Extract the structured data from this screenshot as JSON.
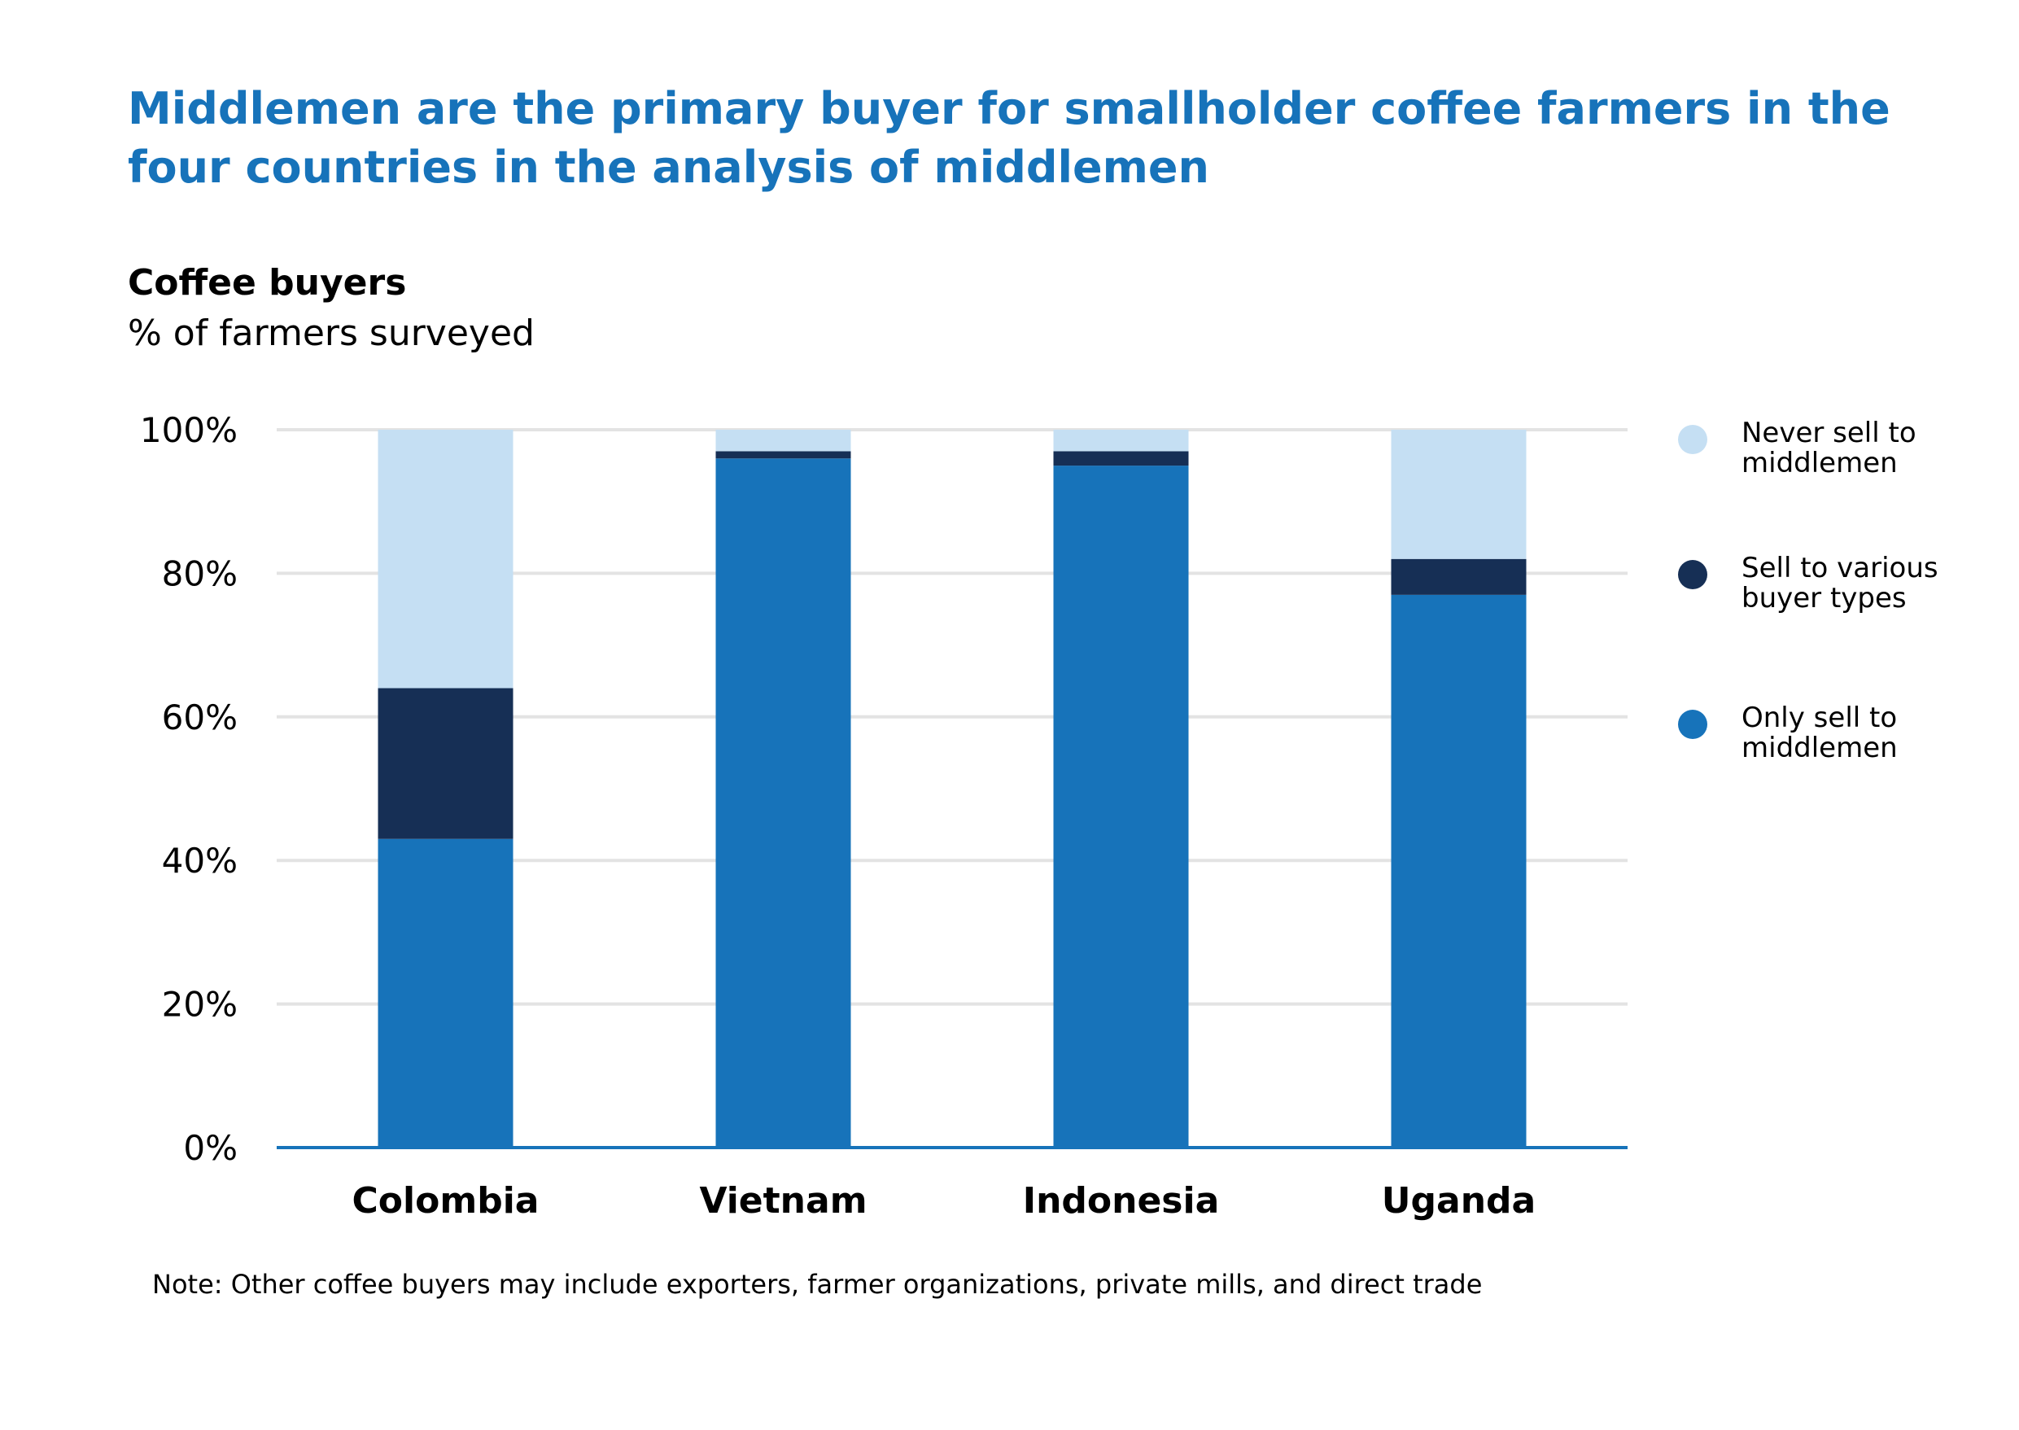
{
  "title": "Middlemen are the primary buyer for smallholder coffee farmers in the four countries in the analysis of middlemen",
  "chart_data": {
    "type": "bar",
    "stacked": true,
    "title": "Coffee buyers",
    "ylabel": "% of farmers surveyed",
    "xlabel": "",
    "categories": [
      "Colombia",
      "Vietnam",
      "Indonesia",
      "Uganda"
    ],
    "ylim": [
      0,
      100
    ],
    "yticks": [
      0,
      20,
      40,
      60,
      80,
      100
    ],
    "ytick_labels": [
      "0%",
      "20%",
      "40%",
      "60%",
      "80%",
      "100%"
    ],
    "grid": true,
    "legend_position": "right",
    "series": [
      {
        "name": "Only sell to middlemen",
        "color": "#1773BA",
        "values": [
          43,
          96,
          95,
          77
        ]
      },
      {
        "name": "Sell to various buyer types",
        "color": "#162F55",
        "values": [
          21,
          1,
          2,
          5
        ]
      },
      {
        "name": "Never sell to middlemen",
        "color": "#C5DFF3",
        "values": [
          36,
          3,
          3,
          18
        ]
      }
    ],
    "legend": [
      {
        "label": "Never sell to\nmiddlemen",
        "color": "#C5DFF3"
      },
      {
        "label": "Sell to various\nbuyer types",
        "color": "#162F55"
      },
      {
        "label": "Only sell to\nmiddlemen",
        "color": "#1773BA"
      }
    ],
    "note": "Note: Other coffee buyers may include exporters, farmer organizations, private mills, and direct trade"
  },
  "colors": {
    "title": "#1773BA",
    "grid": "#E3E3E3",
    "axis": "#1773BA"
  }
}
